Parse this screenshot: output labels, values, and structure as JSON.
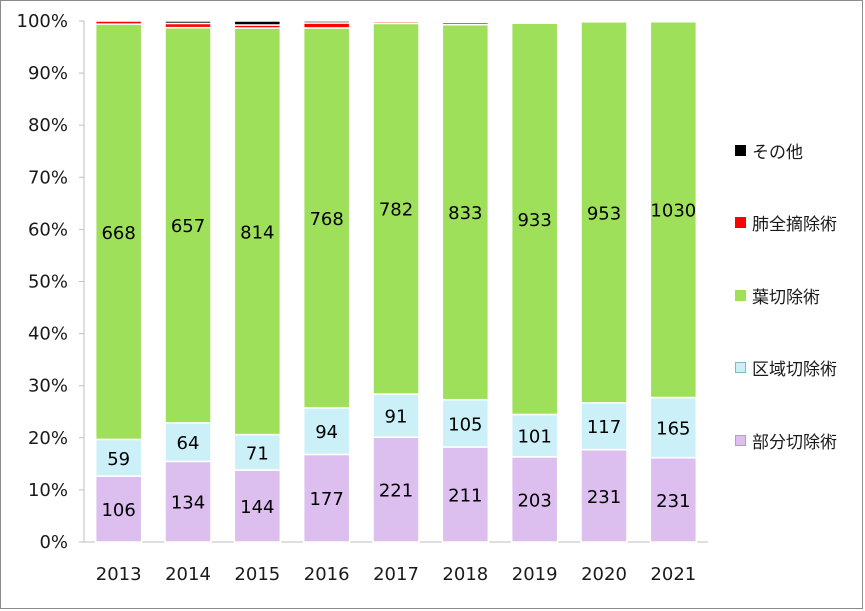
{
  "chart_data": {
    "type": "bar",
    "stacked": true,
    "normalized": true,
    "categories": [
      "2013",
      "2014",
      "2015",
      "2016",
      "2017",
      "2018",
      "2019",
      "2020",
      "2021"
    ],
    "y_ticks": [
      "0%",
      "10%",
      "20%",
      "30%",
      "40%",
      "50%",
      "60%",
      "70%",
      "80%",
      "90%",
      "100%"
    ],
    "ylim": [
      0,
      100
    ],
    "grid": false,
    "legend_position": "right",
    "series": [
      {
        "name": "部分切除術",
        "color": "#dcbfef",
        "values": [
          106,
          134,
          144,
          177,
          221,
          211,
          203,
          231,
          231
        ]
      },
      {
        "name": "区域切除術",
        "color": "#ccf0f8",
        "values": [
          59,
          64,
          71,
          94,
          91,
          105,
          101,
          117,
          165
        ]
      },
      {
        "name": "葉切除術",
        "color": "#9fe05a",
        "values": [
          668,
          657,
          814,
          768,
          782,
          833,
          933,
          953,
          1030
        ]
      },
      {
        "name": "肺全摘除術",
        "color": "#ff0000",
        "values": [
          5,
          7,
          6,
          10,
          4,
          5,
          2,
          2,
          2
        ]
      },
      {
        "name": "その他",
        "color": "#000000",
        "values": [
          0,
          4,
          8,
          4,
          1,
          3,
          3,
          0,
          0
        ]
      }
    ],
    "labeled_series": [
      "部分切除術",
      "区域切除術",
      "葉切除術"
    ]
  },
  "legend_order": [
    "その他",
    "肺全摘除術",
    "葉切除術",
    "区域切除術",
    "部分切除術"
  ]
}
